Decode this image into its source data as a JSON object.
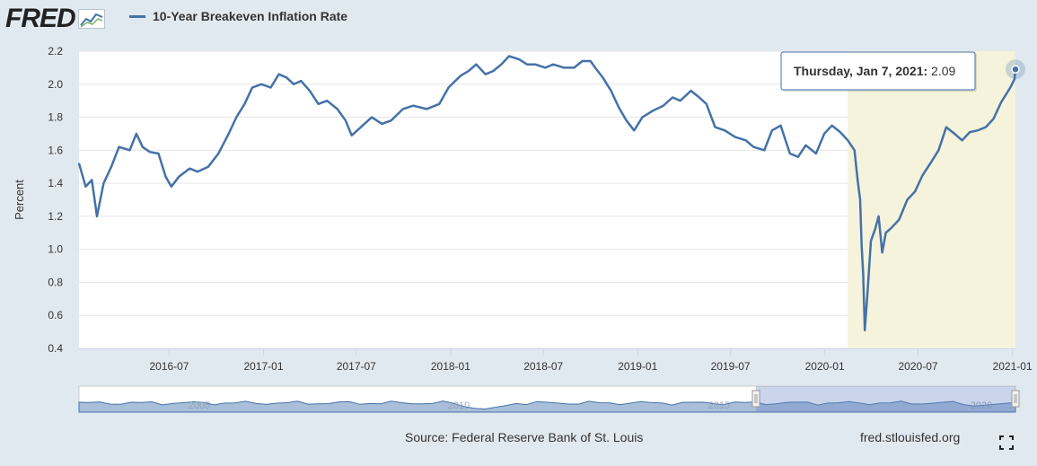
{
  "header": {
    "logo_text": "FRED",
    "series_label": "10-Year Breakeven Inflation Rate"
  },
  "footer": {
    "source": "Source: Federal Reserve Bank of St. Louis",
    "site": "fred.stlouisfed.org"
  },
  "tooltip": {
    "date": "Thursday, Jan 7, 2021:",
    "value": "2.09"
  },
  "colors": {
    "series": "#4572a7",
    "recession_shade": "#f5f3dc",
    "background": "#e1e9f0"
  },
  "icons": {
    "logo": "fred-graph-icon",
    "fullscreen": "fullscreen-icon"
  },
  "navigator": {
    "labels": [
      "2005",
      "2010",
      "2015",
      "2020"
    ]
  },
  "chart_data": {
    "type": "line",
    "title": "",
    "xlabel": "",
    "ylabel": "Percent",
    "ylim": [
      0.4,
      2.2
    ],
    "yticks": [
      0.4,
      0.6,
      0.8,
      1.0,
      1.2,
      1.4,
      1.6,
      1.8,
      2.0,
      2.2
    ],
    "xlim": [
      "2016-01-07",
      "2021-01-07"
    ],
    "xticks": [
      "2016-07",
      "2017-01",
      "2017-07",
      "2018-01",
      "2018-07",
      "2019-01",
      "2019-07",
      "2020-01",
      "2020-07",
      "2021-01"
    ],
    "grid": true,
    "legend": "top-left",
    "shaded_region": [
      "2020-02-15",
      "2021-01-07"
    ],
    "series": [
      {
        "name": "10-Year Breakeven Inflation Rate",
        "points": [
          [
            "2016-01-07",
            1.52
          ],
          [
            "2016-01-20",
            1.38
          ],
          [
            "2016-02-01",
            1.42
          ],
          [
            "2016-02-11",
            1.2
          ],
          [
            "2016-02-24",
            1.4
          ],
          [
            "2016-03-10",
            1.5
          ],
          [
            "2016-03-25",
            1.62
          ],
          [
            "2016-04-15",
            1.6
          ],
          [
            "2016-04-28",
            1.7
          ],
          [
            "2016-05-10",
            1.62
          ],
          [
            "2016-05-24",
            1.59
          ],
          [
            "2016-06-10",
            1.58
          ],
          [
            "2016-06-24",
            1.44
          ],
          [
            "2016-07-05",
            1.38
          ],
          [
            "2016-07-20",
            1.44
          ],
          [
            "2016-08-10",
            1.49
          ],
          [
            "2016-08-25",
            1.47
          ],
          [
            "2016-09-15",
            1.5
          ],
          [
            "2016-10-05",
            1.58
          ],
          [
            "2016-10-25",
            1.7
          ],
          [
            "2016-11-09",
            1.8
          ],
          [
            "2016-11-25",
            1.88
          ],
          [
            "2016-12-10",
            1.98
          ],
          [
            "2016-12-28",
            2.0
          ],
          [
            "2017-01-15",
            1.98
          ],
          [
            "2017-01-31",
            2.06
          ],
          [
            "2017-02-15",
            2.04
          ],
          [
            "2017-03-01",
            2.0
          ],
          [
            "2017-03-15",
            2.02
          ],
          [
            "2017-04-01",
            1.96
          ],
          [
            "2017-04-18",
            1.88
          ],
          [
            "2017-05-05",
            1.9
          ],
          [
            "2017-05-25",
            1.85
          ],
          [
            "2017-06-10",
            1.78
          ],
          [
            "2017-06-22",
            1.69
          ],
          [
            "2017-07-10",
            1.74
          ],
          [
            "2017-07-31",
            1.8
          ],
          [
            "2017-08-20",
            1.76
          ],
          [
            "2017-09-07",
            1.78
          ],
          [
            "2017-09-30",
            1.85
          ],
          [
            "2017-10-20",
            1.87
          ],
          [
            "2017-11-15",
            1.85
          ],
          [
            "2017-12-10",
            1.88
          ],
          [
            "2017-12-28",
            1.98
          ],
          [
            "2018-01-20",
            2.05
          ],
          [
            "2018-02-05",
            2.08
          ],
          [
            "2018-02-20",
            2.12
          ],
          [
            "2018-03-10",
            2.06
          ],
          [
            "2018-03-25",
            2.08
          ],
          [
            "2018-04-10",
            2.12
          ],
          [
            "2018-04-25",
            2.17
          ],
          [
            "2018-05-15",
            2.15
          ],
          [
            "2018-05-30",
            2.12
          ],
          [
            "2018-06-15",
            2.12
          ],
          [
            "2018-07-05",
            2.1
          ],
          [
            "2018-07-20",
            2.12
          ],
          [
            "2018-08-10",
            2.1
          ],
          [
            "2018-08-30",
            2.1
          ],
          [
            "2018-09-15",
            2.14
          ],
          [
            "2018-10-01",
            2.14
          ],
          [
            "2018-10-10",
            2.1
          ],
          [
            "2018-10-25",
            2.04
          ],
          [
            "2018-11-10",
            1.96
          ],
          [
            "2018-11-25",
            1.86
          ],
          [
            "2018-12-10",
            1.78
          ],
          [
            "2018-12-25",
            1.72
          ],
          [
            "2019-01-10",
            1.8
          ],
          [
            "2019-01-31",
            1.84
          ],
          [
            "2019-02-20",
            1.87
          ],
          [
            "2019-03-10",
            1.92
          ],
          [
            "2019-03-25",
            1.9
          ],
          [
            "2019-04-15",
            1.96
          ],
          [
            "2019-05-01",
            1.92
          ],
          [
            "2019-05-15",
            1.88
          ],
          [
            "2019-06-01",
            1.74
          ],
          [
            "2019-06-20",
            1.72
          ],
          [
            "2019-07-10",
            1.68
          ],
          [
            "2019-07-31",
            1.66
          ],
          [
            "2019-08-15",
            1.62
          ],
          [
            "2019-09-05",
            1.6
          ],
          [
            "2019-09-20",
            1.72
          ],
          [
            "2019-10-07",
            1.75
          ],
          [
            "2019-10-25",
            1.58
          ],
          [
            "2019-11-10",
            1.56
          ],
          [
            "2019-11-25",
            1.63
          ],
          [
            "2019-12-15",
            1.58
          ],
          [
            "2019-12-31",
            1.7
          ],
          [
            "2020-01-15",
            1.75
          ],
          [
            "2020-01-31",
            1.71
          ],
          [
            "2020-02-15",
            1.66
          ],
          [
            "2020-02-28",
            1.6
          ],
          [
            "2020-03-05",
            1.42
          ],
          [
            "2020-03-10",
            1.3
          ],
          [
            "2020-03-13",
            1.02
          ],
          [
            "2020-03-16",
            0.85
          ],
          [
            "2020-03-19",
            0.51
          ],
          [
            "2020-03-24",
            0.72
          ],
          [
            "2020-03-31",
            1.05
          ],
          [
            "2020-04-08",
            1.12
          ],
          [
            "2020-04-15",
            1.2
          ],
          [
            "2020-04-22",
            0.98
          ],
          [
            "2020-04-29",
            1.1
          ],
          [
            "2020-05-10",
            1.13
          ],
          [
            "2020-05-25",
            1.18
          ],
          [
            "2020-06-10",
            1.3
          ],
          [
            "2020-06-25",
            1.35
          ],
          [
            "2020-07-10",
            1.45
          ],
          [
            "2020-07-25",
            1.52
          ],
          [
            "2020-08-10",
            1.6
          ],
          [
            "2020-08-25",
            1.74
          ],
          [
            "2020-09-10",
            1.7
          ],
          [
            "2020-09-25",
            1.66
          ],
          [
            "2020-10-10",
            1.71
          ],
          [
            "2020-10-25",
            1.72
          ],
          [
            "2020-11-10",
            1.74
          ],
          [
            "2020-11-25",
            1.79
          ],
          [
            "2020-12-10",
            1.89
          ],
          [
            "2020-12-28",
            1.98
          ],
          [
            "2021-01-05",
            2.03
          ],
          [
            "2021-01-07",
            2.09
          ]
        ]
      }
    ]
  }
}
